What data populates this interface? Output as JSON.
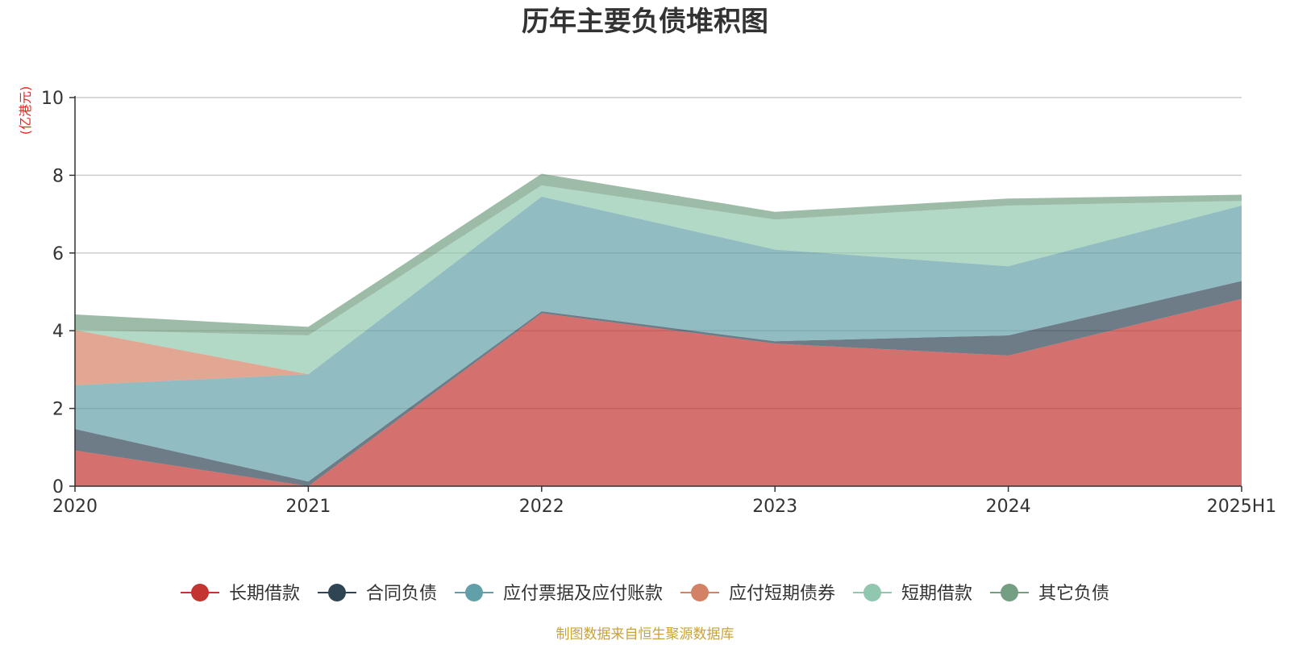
{
  "chart_data": {
    "type": "area",
    "stacked": true,
    "title": "历年主要负债堆积图",
    "unit_label": "(亿港元)",
    "unit_color": "#e8251f",
    "categories": [
      "2020",
      "2021",
      "2022",
      "2023",
      "2024",
      "2025H1"
    ],
    "ylim": [
      0,
      10
    ],
    "yticks": [
      0,
      2,
      4,
      6,
      8,
      10
    ],
    "yticks_labels": [
      "0",
      "2",
      "4",
      "6",
      "8",
      "10"
    ],
    "grid": true,
    "legend_position": "bottom",
    "series": [
      {
        "name": "长期借款",
        "color": "#c23531",
        "values": [
          0.92,
          0.0,
          4.45,
          3.67,
          3.36,
          4.82
        ]
      },
      {
        "name": "合同负债",
        "color": "#2f4554",
        "values": [
          0.55,
          0.12,
          0.05,
          0.06,
          0.52,
          0.46
        ]
      },
      {
        "name": "应付票据及应付账款",
        "color": "#61a0a8",
        "values": [
          1.13,
          2.76,
          2.95,
          2.36,
          1.78,
          1.94
        ]
      },
      {
        "name": "应付短期债券",
        "color": "#d48265",
        "values": [
          1.42,
          0.0,
          0.0,
          0.0,
          0.0,
          0.0
        ]
      },
      {
        "name": "短期借款",
        "color": "#91c7ae",
        "values": [
          0.0,
          1.0,
          0.29,
          0.77,
          1.56,
          0.12
        ]
      },
      {
        "name": "其它负债",
        "color": "#749f83",
        "values": [
          0.4,
          0.22,
          0.3,
          0.2,
          0.18,
          0.16
        ]
      }
    ]
  },
  "footer": {
    "source": "制图数据来自恒生聚源数据库",
    "source_color": "#c8a23a"
  }
}
